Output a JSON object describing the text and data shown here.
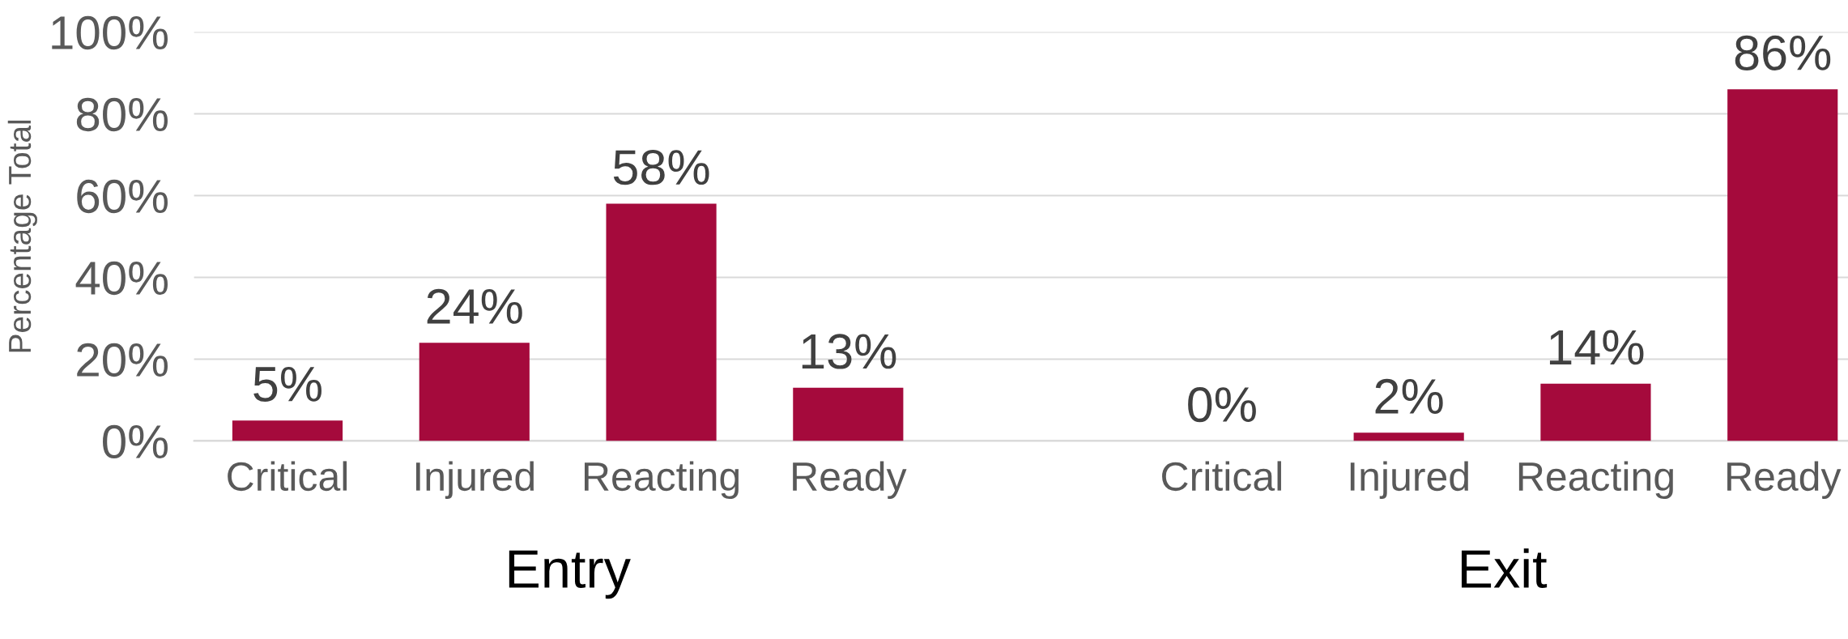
{
  "chart_data": {
    "type": "bar",
    "ylabel": "Percentage Total",
    "categories": [
      "Critical",
      "Injured",
      "Reacting",
      "Ready",
      null,
      "Critical",
      "Injured",
      "Reacting",
      "Ready"
    ],
    "values": [
      5,
      24,
      58,
      13,
      null,
      0,
      2,
      14,
      86
    ],
    "colors": [
      "#a50a3c",
      "#a50a3c",
      "#a50a3c",
      "#a50a3c",
      "#a50a3c",
      "#bfbfbf",
      "#a50a3c",
      "#a50a3c",
      "#a50a3c"
    ],
    "value_labels": [
      "5%",
      "24%",
      "58%",
      "13%",
      null,
      "0%",
      "2%",
      "14%",
      "86%"
    ],
    "ylim": [
      0,
      100
    ],
    "yticks": [
      {
        "value": 0,
        "label": "0%"
      },
      {
        "value": 20,
        "label": "20%"
      },
      {
        "value": 40,
        "label": "40%"
      },
      {
        "value": 60,
        "label": "60%"
      },
      {
        "value": 80,
        "label": "80%"
      },
      {
        "value": 100,
        "label": "100%"
      }
    ],
    "grid": "y",
    "annotations": [
      "Entry",
      "Exit"
    ]
  }
}
